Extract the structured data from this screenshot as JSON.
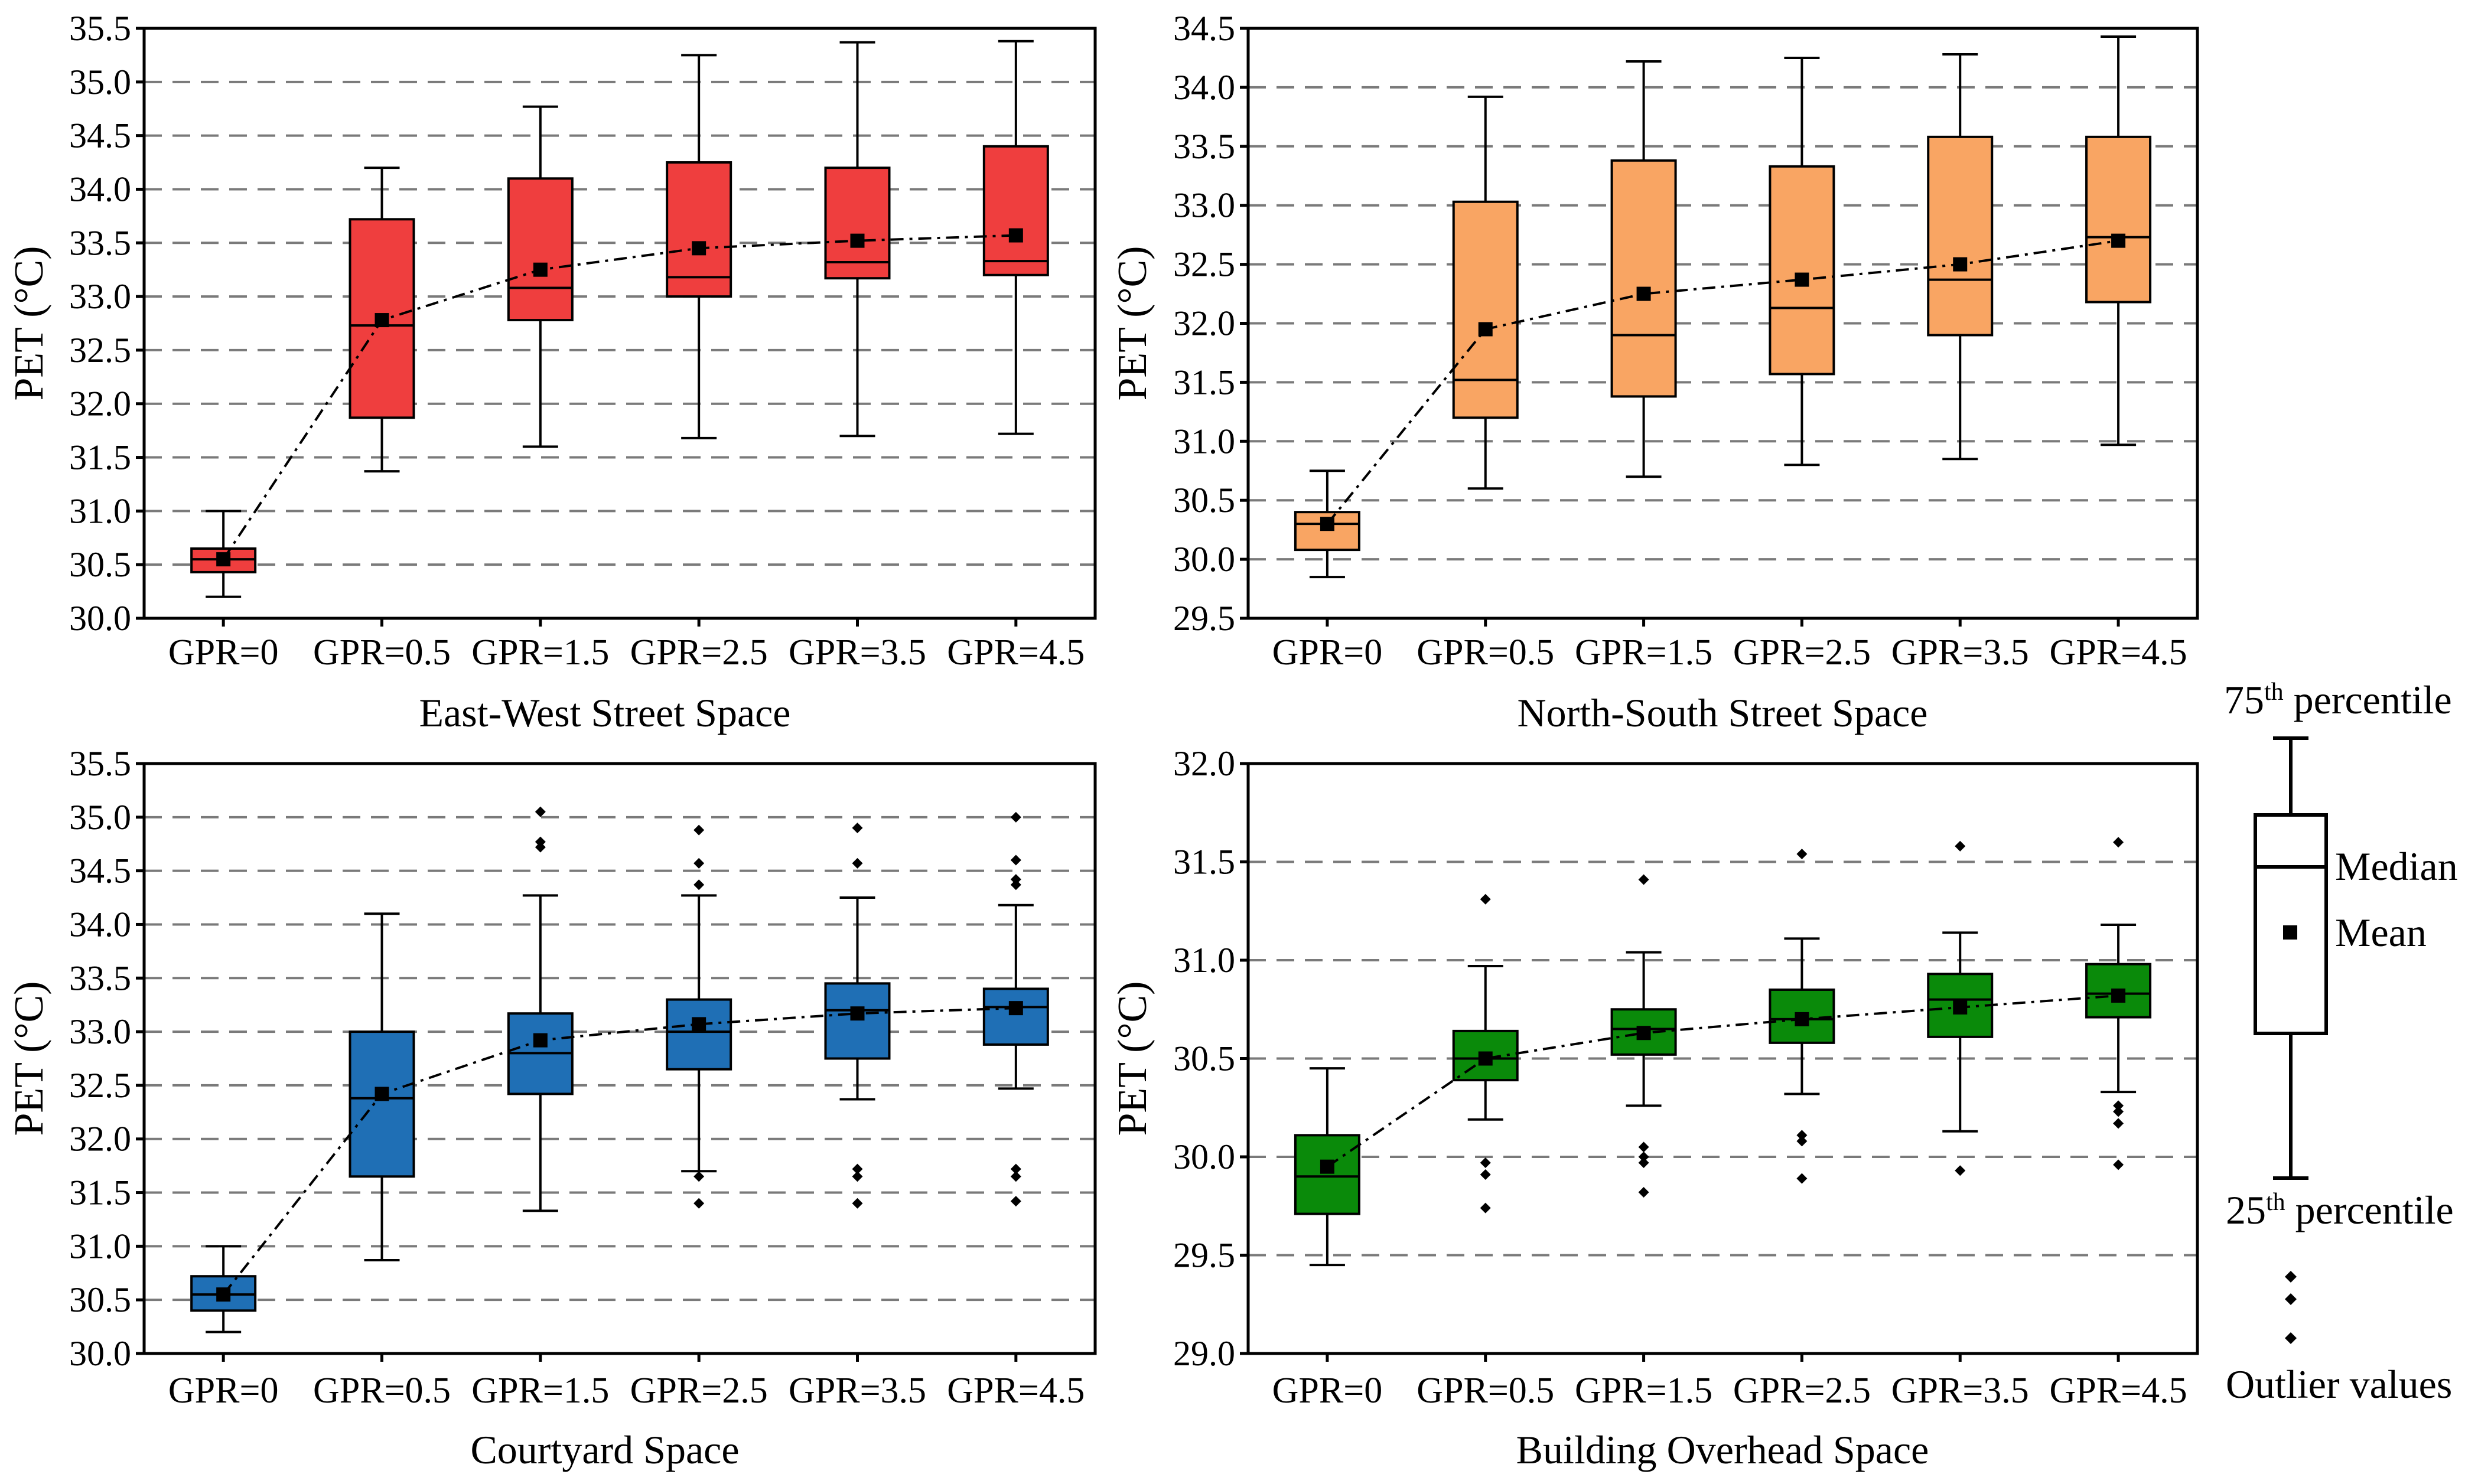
{
  "chart_data": [
    {
      "type": "box",
      "title": "East-West Street Space",
      "ylabel": "PET (°C)",
      "ylim": [
        30.0,
        35.5
      ],
      "yticks": [
        30.0,
        30.5,
        31.0,
        31.5,
        32.0,
        32.5,
        33.0,
        33.5,
        34.0,
        34.5,
        35.0,
        35.5
      ],
      "ytick_labels": [
        "30.0",
        "30.5",
        "31.0",
        "31.5",
        "32.0",
        "32.5",
        "33.0",
        "33.5",
        "34.0",
        "34.5",
        "35.0",
        "35.5"
      ],
      "grid": true,
      "box_color": "#ef3e3e",
      "categories": [
        "GPR=0",
        "GPR=0.5",
        "GPR=1.5",
        "GPR=2.5",
        "GPR=3.5",
        "GPR=4.5"
      ],
      "boxes": [
        {
          "whisker_low": 30.2,
          "q1": 30.43,
          "median": 30.55,
          "q3": 30.65,
          "whisker_high": 31.0,
          "mean": 30.55,
          "outliers": []
        },
        {
          "whisker_low": 31.37,
          "q1": 31.87,
          "median": 32.73,
          "q3": 33.72,
          "whisker_high": 34.2,
          "mean": 32.78,
          "outliers": []
        },
        {
          "whisker_low": 31.6,
          "q1": 32.78,
          "median": 33.08,
          "q3": 34.1,
          "whisker_high": 34.77,
          "mean": 33.25,
          "outliers": []
        },
        {
          "whisker_low": 31.68,
          "q1": 33.0,
          "median": 33.18,
          "q3": 34.25,
          "whisker_high": 35.25,
          "mean": 33.45,
          "outliers": []
        },
        {
          "whisker_low": 31.7,
          "q1": 33.17,
          "median": 33.32,
          "q3": 34.2,
          "whisker_high": 35.37,
          "mean": 33.52,
          "outliers": []
        },
        {
          "whisker_low": 31.72,
          "q1": 33.2,
          "median": 33.33,
          "q3": 34.4,
          "whisker_high": 35.38,
          "mean": 33.57,
          "outliers": []
        }
      ]
    },
    {
      "type": "box",
      "title": "North-South Street Space",
      "ylabel": "PET (°C)",
      "ylim": [
        29.5,
        34.5
      ],
      "yticks": [
        29.5,
        30.0,
        30.5,
        31.0,
        31.5,
        32.0,
        32.5,
        33.0,
        33.5,
        34.0,
        34.5
      ],
      "ytick_labels": [
        "29.5",
        "30.0",
        "30.5",
        "31.0",
        "31.5",
        "32.0",
        "32.5",
        "33.0",
        "33.5",
        "34.0",
        "34.5"
      ],
      "grid": true,
      "box_color": "#f9a563",
      "categories": [
        "GPR=0",
        "GPR=0.5",
        "GPR=1.5",
        "GPR=2.5",
        "GPR=3.5",
        "GPR=4.5"
      ],
      "boxes": [
        {
          "whisker_low": 29.85,
          "q1": 30.08,
          "median": 30.3,
          "q3": 30.4,
          "whisker_high": 30.75,
          "mean": 30.3,
          "outliers": []
        },
        {
          "whisker_low": 30.6,
          "q1": 31.2,
          "median": 31.52,
          "q3": 33.03,
          "whisker_high": 33.92,
          "mean": 31.95,
          "outliers": []
        },
        {
          "whisker_low": 30.7,
          "q1": 31.38,
          "median": 31.9,
          "q3": 33.38,
          "whisker_high": 34.22,
          "mean": 32.25,
          "outliers": []
        },
        {
          "whisker_low": 30.8,
          "q1": 31.57,
          "median": 32.13,
          "q3": 33.33,
          "whisker_high": 34.25,
          "mean": 32.37,
          "outliers": []
        },
        {
          "whisker_low": 30.85,
          "q1": 31.9,
          "median": 32.37,
          "q3": 33.58,
          "whisker_high": 34.28,
          "mean": 32.5,
          "outliers": []
        },
        {
          "whisker_low": 30.97,
          "q1": 32.18,
          "median": 32.73,
          "q3": 33.58,
          "whisker_high": 34.43,
          "mean": 32.7,
          "outliers": []
        }
      ]
    },
    {
      "type": "box",
      "title": "Courtyard Space",
      "ylabel": "PET (°C)",
      "ylim": [
        30.0,
        35.5
      ],
      "yticks": [
        30.0,
        30.5,
        31.0,
        31.5,
        32.0,
        32.5,
        33.0,
        33.5,
        34.0,
        34.5,
        35.0,
        35.5
      ],
      "ytick_labels": [
        "30.0",
        "30.5",
        "31.0",
        "31.5",
        "32.0",
        "32.5",
        "33.0",
        "33.5",
        "34.0",
        "34.5",
        "35.0",
        "35.5"
      ],
      "grid": true,
      "box_color": "#1f6fb5",
      "categories": [
        "GPR=0",
        "GPR=0.5",
        "GPR=1.5",
        "GPR=2.5",
        "GPR=3.5",
        "GPR=4.5"
      ],
      "boxes": [
        {
          "whisker_low": 30.2,
          "q1": 30.4,
          "median": 30.55,
          "q3": 30.72,
          "whisker_high": 31.0,
          "mean": 30.55,
          "outliers": []
        },
        {
          "whisker_low": 30.87,
          "q1": 31.65,
          "median": 32.38,
          "q3": 33.0,
          "whisker_high": 34.1,
          "mean": 32.42,
          "outliers": []
        },
        {
          "whisker_low": 31.33,
          "q1": 32.42,
          "median": 32.8,
          "q3": 33.17,
          "whisker_high": 34.27,
          "mean": 32.92,
          "outliers": [
            35.05,
            34.77,
            34.72
          ]
        },
        {
          "whisker_low": 31.7,
          "q1": 32.65,
          "median": 33.0,
          "q3": 33.3,
          "whisker_high": 34.27,
          "mean": 33.07,
          "outliers": [
            34.88,
            34.57,
            34.37,
            31.65,
            31.4
          ]
        },
        {
          "whisker_low": 32.37,
          "q1": 32.75,
          "median": 33.2,
          "q3": 33.45,
          "whisker_high": 34.25,
          "mean": 33.17,
          "outliers": [
            34.9,
            34.57,
            31.72,
            31.65,
            31.4
          ]
        },
        {
          "whisker_low": 32.47,
          "q1": 32.88,
          "median": 33.23,
          "q3": 33.4,
          "whisker_high": 34.18,
          "mean": 33.22,
          "outliers": [
            35.0,
            34.6,
            34.42,
            34.37,
            31.72,
            31.65,
            31.42
          ]
        }
      ]
    },
    {
      "type": "box",
      "title": "Building Overhead Space",
      "ylabel": "PET (°C)",
      "ylim": [
        29.0,
        32.0
      ],
      "yticks": [
        29.0,
        29.5,
        30.0,
        30.5,
        31.0,
        31.5,
        32.0
      ],
      "ytick_labels": [
        "29.0",
        "29.5",
        "30.0",
        "30.5",
        "31.0",
        "31.5",
        "32.0"
      ],
      "grid": true,
      "box_color": "#0a8a0a",
      "categories": [
        "GPR=0",
        "GPR=0.5",
        "GPR=1.5",
        "GPR=2.5",
        "GPR=3.5",
        "GPR=4.5"
      ],
      "boxes": [
        {
          "whisker_low": 29.45,
          "q1": 29.71,
          "median": 29.9,
          "q3": 30.11,
          "whisker_high": 30.45,
          "mean": 29.95,
          "outliers": []
        },
        {
          "whisker_low": 30.19,
          "q1": 30.39,
          "median": 30.5,
          "q3": 30.64,
          "whisker_high": 30.97,
          "mean": 30.5,
          "outliers": [
            31.31,
            29.97,
            29.91,
            29.74
          ]
        },
        {
          "whisker_low": 30.26,
          "q1": 30.52,
          "median": 30.65,
          "q3": 30.75,
          "whisker_high": 31.04,
          "mean": 30.63,
          "outliers": [
            31.41,
            30.05,
            30.0,
            29.97,
            29.82
          ]
        },
        {
          "whisker_low": 30.32,
          "q1": 30.58,
          "median": 30.7,
          "q3": 30.85,
          "whisker_high": 31.11,
          "mean": 30.7,
          "outliers": [
            31.54,
            30.11,
            30.08,
            29.89
          ]
        },
        {
          "whisker_low": 30.13,
          "q1": 30.61,
          "median": 30.8,
          "q3": 30.93,
          "whisker_high": 31.14,
          "mean": 30.76,
          "outliers": [
            31.58,
            29.93
          ]
        },
        {
          "whisker_low": 30.33,
          "q1": 30.71,
          "median": 30.83,
          "q3": 30.98,
          "whisker_high": 31.18,
          "mean": 30.82,
          "outliers": [
            31.6,
            30.26,
            30.23,
            30.17,
            29.96
          ]
        }
      ]
    }
  ],
  "legend": {
    "q3_label": "75",
    "q3_suffix": "th",
    "q3_word": " percentile",
    "median_label": "Median",
    "mean_label": "Mean",
    "q1_label": "25",
    "q1_suffix": "th",
    "q1_word": " percentile",
    "outlier_label": "Outlier values"
  }
}
